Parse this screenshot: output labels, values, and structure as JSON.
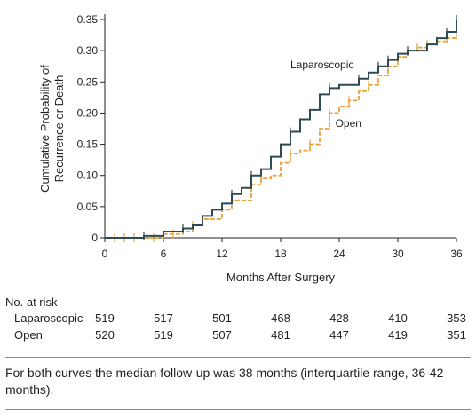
{
  "chart_data": {
    "type": "line",
    "step": true,
    "ylabel_lines": [
      "Cumulative Probability of",
      "Recurrence or Death"
    ],
    "xlabel": "Months After Surgery",
    "xlim": [
      0,
      36
    ],
    "ylim": [
      0,
      0.35
    ],
    "xticks": [
      0,
      6,
      12,
      18,
      24,
      30,
      36
    ],
    "yticks": [
      0,
      0.05,
      0.1,
      0.15,
      0.2,
      0.25,
      0.3,
      0.35
    ],
    "ytick_labels": [
      "0",
      "0.05",
      "0.10",
      "0.15",
      "0.20",
      "0.25",
      "0.30",
      "0.35"
    ],
    "grid": false,
    "legend": "inline labels",
    "series": [
      {
        "name": "Laparoscopic",
        "color": "#2e4a52",
        "dashed": false,
        "x": [
          0,
          4,
          6,
          8,
          9,
          10,
          11,
          12,
          13,
          14,
          15,
          16,
          17,
          18,
          19,
          20,
          21,
          22,
          23,
          24,
          26,
          27,
          28,
          29,
          30,
          31,
          33,
          34,
          35,
          36
        ],
        "y": [
          0,
          0.003,
          0.01,
          0.015,
          0.02,
          0.035,
          0.045,
          0.055,
          0.07,
          0.08,
          0.1,
          0.11,
          0.13,
          0.15,
          0.17,
          0.19,
          0.205,
          0.23,
          0.24,
          0.245,
          0.255,
          0.265,
          0.275,
          0.285,
          0.295,
          0.3,
          0.31,
          0.32,
          0.33,
          0.35
        ],
        "censor_x": [
          4,
          8,
          13,
          15,
          19,
          23,
          26,
          28,
          29,
          31,
          35,
          36
        ],
        "label_at": [
          19,
          0.272
        ]
      },
      {
        "name": "Open",
        "color": "#e8a33d",
        "dashed": true,
        "x": [
          0,
          6,
          8,
          9,
          10,
          12,
          13,
          15,
          16,
          17,
          18,
          19,
          20,
          21,
          22,
          23,
          24,
          25,
          26,
          27,
          28,
          29,
          30,
          31,
          32,
          33,
          34,
          35,
          36
        ],
        "y": [
          0,
          0.006,
          0.01,
          0.02,
          0.03,
          0.045,
          0.06,
          0.085,
          0.095,
          0.1,
          0.12,
          0.135,
          0.14,
          0.15,
          0.175,
          0.2,
          0.21,
          0.22,
          0.235,
          0.245,
          0.26,
          0.275,
          0.29,
          0.3,
          0.305,
          0.31,
          0.315,
          0.32,
          0.325
        ],
        "censor_x": [
          1,
          2,
          3,
          5,
          7,
          9,
          15,
          16,
          19,
          21,
          23,
          25,
          27,
          29,
          31,
          32,
          33,
          34,
          35,
          36
        ],
        "label_at": [
          23.6,
          0.178
        ]
      }
    ]
  },
  "risk_table": {
    "title": "No. at risk",
    "rows": [
      {
        "label": "Laparoscopic",
        "values": [
          "519",
          "517",
          "501",
          "468",
          "428",
          "410",
          "353"
        ]
      },
      {
        "label": "Open",
        "values": [
          "520",
          "519",
          "507",
          "481",
          "447",
          "419",
          "351"
        ]
      }
    ]
  },
  "footnote": "For both curves the median follow-up was 38 months (interquartile range, 36-42 months)."
}
